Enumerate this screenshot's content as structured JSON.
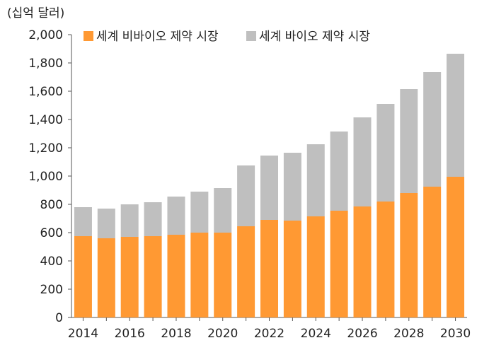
{
  "chart_data": {
    "type": "bar",
    "stacked": true,
    "unit_label": "(십억 달러)",
    "categories": [
      "2014",
      "2015",
      "2016",
      "2017",
      "2018",
      "2019",
      "2020",
      "2021",
      "2022",
      "2023",
      "2024",
      "2025",
      "2026",
      "2027",
      "2028",
      "2029",
      "2030"
    ],
    "x_tick_labels": [
      "2014",
      "2016",
      "2018",
      "2020",
      "2022",
      "2024",
      "2026",
      "2028",
      "2030"
    ],
    "series": [
      {
        "name": "세계 비바이오 제약 시장",
        "color": "#FF9933",
        "values": [
          575,
          560,
          570,
          575,
          585,
          600,
          600,
          645,
          690,
          685,
          715,
          755,
          785,
          820,
          880,
          925,
          995
        ]
      },
      {
        "name": "세계 바이오 제약 시장",
        "color": "#BFBFBF",
        "values": [
          205,
          210,
          230,
          240,
          270,
          290,
          315,
          430,
          455,
          480,
          510,
          560,
          630,
          690,
          735,
          810,
          870
        ]
      }
    ],
    "ylim": [
      0,
      2000
    ],
    "y_ticks": [
      0,
      200,
      400,
      600,
      800,
      1000,
      1200,
      1400,
      1600,
      1800,
      2000
    ],
    "y_tick_labels": [
      "0",
      "200",
      "400",
      "600",
      "800",
      "1,000",
      "1,200",
      "1,400",
      "1,600",
      "1,800",
      "2,000"
    ],
    "grid": false,
    "legend_position": "top"
  }
}
